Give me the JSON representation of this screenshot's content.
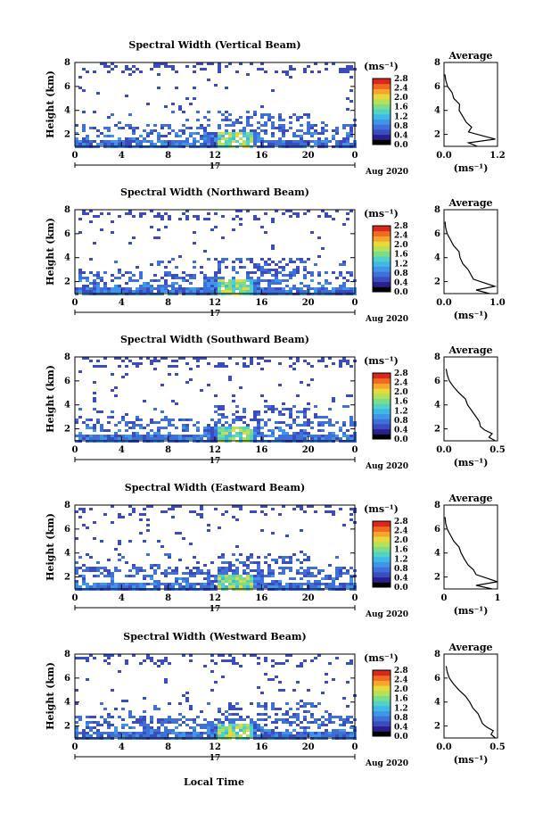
{
  "colors": {
    "colorbar": [
      "#000000",
      "#2a1f8c",
      "#3b4cc0",
      "#3f6fd8",
      "#3f95e8",
      "#3fb8e6",
      "#52d1c6",
      "#7ddc8a",
      "#b6e05a",
      "#e8d93a",
      "#f7a52c",
      "#f06a22",
      "#d8271c"
    ],
    "axis": "#000000",
    "profile_line": "#000000"
  },
  "figure": {
    "x_axis_label": "Local Time",
    "date_label": "Aug 2020",
    "day_label": "17",
    "y_axis_label": "Height (km)",
    "colorbar_unit": "(ms⁻¹)",
    "avg_xlabel": "(ms⁻¹)",
    "avg_title": "Average"
  },
  "chart_data": [
    {
      "type": "heatmap",
      "title": "Spectral Width (Vertical Beam)",
      "xlabel": "Local Time",
      "ylabel": "Height (km)",
      "x_ticks": [
        "0",
        "4",
        "8",
        "12",
        "16",
        "20",
        "0"
      ],
      "y_ticks": [
        "2",
        "4",
        "6",
        "8"
      ],
      "xlim": [
        0,
        24
      ],
      "ylim": [
        1,
        8
      ],
      "colorbar": {
        "ticks": [
          "0.0",
          "0.4",
          "0.8",
          "1.2",
          "1.6",
          "2.0",
          "2.4",
          "2.8"
        ],
        "range": [
          0,
          2.8
        ]
      },
      "average": {
        "title": "Average",
        "xlim": [
          0,
          1.2
        ],
        "x_ticks": [
          "0.0",
          "1.2"
        ],
        "y_ticks": [
          "2",
          "4",
          "6",
          "8"
        ],
        "heights": [
          1.0,
          1.3,
          1.6,
          1.9,
          2.2,
          2.6,
          3.0,
          3.5,
          4.0,
          4.5,
          5.0,
          5.5,
          6.0,
          6.5,
          7.0
        ],
        "values": [
          0.75,
          0.55,
          1.15,
          0.85,
          0.55,
          0.62,
          0.5,
          0.42,
          0.34,
          0.35,
          0.22,
          0.18,
          0.08,
          0.04,
          0.02
        ]
      }
    },
    {
      "type": "heatmap",
      "title": "Spectral Width (Northward Beam)",
      "xlabel": "Local Time",
      "ylabel": "Height (km)",
      "x_ticks": [
        "0",
        "4",
        "8",
        "12",
        "16",
        "20",
        "0"
      ],
      "y_ticks": [
        "2",
        "4",
        "6",
        "8"
      ],
      "xlim": [
        0,
        24
      ],
      "ylim": [
        1,
        8
      ],
      "colorbar": {
        "ticks": [
          "0.0",
          "0.4",
          "0.8",
          "1.2",
          "1.6",
          "2.0",
          "2.4",
          "2.8"
        ],
        "range": [
          0,
          2.8
        ]
      },
      "average": {
        "title": "Average",
        "xlim": [
          0,
          1.0
        ],
        "x_ticks": [
          "0.0",
          "1.0"
        ],
        "y_ticks": [
          "2",
          "4",
          "6",
          "8"
        ],
        "heights": [
          1.0,
          1.3,
          1.6,
          1.9,
          2.2,
          2.6,
          3.0,
          3.5,
          4.0,
          4.5,
          5.0,
          5.5,
          6.0,
          6.5,
          7.0
        ],
        "values": [
          0.85,
          0.6,
          0.95,
          0.75,
          0.55,
          0.5,
          0.45,
          0.35,
          0.3,
          0.28,
          0.18,
          0.12,
          0.06,
          0.03,
          0.02
        ]
      }
    },
    {
      "type": "heatmap",
      "title": "Spectral Width (Southward Beam)",
      "xlabel": "Local Time",
      "ylabel": "Height (km)",
      "x_ticks": [
        "0",
        "4",
        "8",
        "12",
        "16",
        "20",
        "0"
      ],
      "y_ticks": [
        "2",
        "4",
        "6",
        "8"
      ],
      "xlim": [
        0,
        24
      ],
      "ylim": [
        1,
        8
      ],
      "colorbar": {
        "ticks": [
          "0.0",
          "0.4",
          "0.8",
          "1.2",
          "1.6",
          "2.0",
          "2.4",
          "2.8"
        ],
        "range": [
          0,
          2.8
        ]
      },
      "average": {
        "title": "Average",
        "xlim": [
          0,
          0.5
        ],
        "x_ticks": [
          "0.0",
          "0.5"
        ],
        "y_ticks": [
          "2",
          "4",
          "6",
          "8"
        ],
        "heights": [
          1.0,
          1.3,
          1.6,
          1.9,
          2.2,
          2.6,
          3.0,
          3.5,
          4.0,
          4.5,
          5.0,
          5.5,
          6.0,
          6.5,
          7.0
        ],
        "values": [
          0.48,
          0.42,
          0.45,
          0.38,
          0.34,
          0.33,
          0.3,
          0.26,
          0.22,
          0.2,
          0.14,
          0.09,
          0.05,
          0.03,
          0.02
        ]
      }
    },
    {
      "type": "heatmap",
      "title": "Spectral Width (Eastward Beam)",
      "xlabel": "Local Time",
      "ylabel": "Height (km)",
      "x_ticks": [
        "0",
        "4",
        "8",
        "12",
        "16",
        "20",
        "0"
      ],
      "y_ticks": [
        "2",
        "4",
        "6",
        "8"
      ],
      "xlim": [
        0,
        24
      ],
      "ylim": [
        1,
        8
      ],
      "colorbar": {
        "ticks": [
          "0.0",
          "0.4",
          "0.8",
          "1.2",
          "1.6",
          "2.0",
          "2.4",
          "2.8"
        ],
        "range": [
          0,
          2.8
        ]
      },
      "average": {
        "title": "Average",
        "xlim": [
          0,
          1.0
        ],
        "x_ticks": [
          "0",
          "1"
        ],
        "y_ticks": [
          "2",
          "4",
          "6",
          "8"
        ],
        "heights": [
          1.0,
          1.3,
          1.6,
          1.9,
          2.2,
          2.6,
          3.0,
          3.5,
          4.0,
          4.5,
          5.0,
          5.5,
          6.0,
          6.5,
          7.0
        ],
        "values": [
          0.9,
          0.6,
          1.0,
          0.8,
          0.6,
          0.55,
          0.45,
          0.38,
          0.32,
          0.28,
          0.18,
          0.12,
          0.06,
          0.03,
          0.02
        ]
      }
    },
    {
      "type": "heatmap",
      "title": "Spectral Width (Westward Beam)",
      "xlabel": "Local Time",
      "ylabel": "Height (km)",
      "x_ticks": [
        "0",
        "4",
        "8",
        "12",
        "16",
        "20",
        "0"
      ],
      "y_ticks": [
        "2",
        "4",
        "6",
        "8"
      ],
      "xlim": [
        0,
        24
      ],
      "ylim": [
        1,
        8
      ],
      "colorbar": {
        "ticks": [
          "0.0",
          "0.4",
          "0.8",
          "1.2",
          "1.6",
          "2.0",
          "2.4",
          "2.8"
        ],
        "range": [
          0,
          2.8
        ]
      },
      "average": {
        "title": "Average",
        "xlim": [
          0,
          0.5
        ],
        "x_ticks": [
          "0.0",
          "0.5"
        ],
        "y_ticks": [
          "2",
          "4",
          "6",
          "8"
        ],
        "heights": [
          1.0,
          1.3,
          1.6,
          1.9,
          2.2,
          2.6,
          3.0,
          3.5,
          4.0,
          4.5,
          5.0,
          5.5,
          6.0,
          6.5,
          7.0
        ],
        "values": [
          0.48,
          0.44,
          0.46,
          0.4,
          0.36,
          0.34,
          0.32,
          0.27,
          0.24,
          0.2,
          0.14,
          0.09,
          0.05,
          0.03,
          0.02
        ]
      }
    }
  ]
}
